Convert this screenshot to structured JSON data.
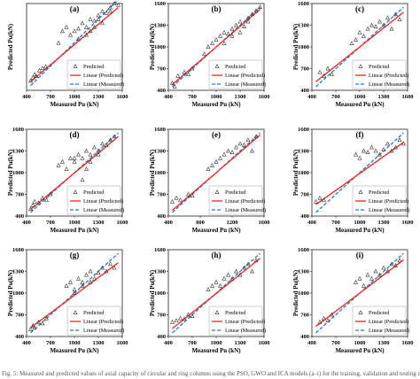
{
  "caption": "Fig. 5: Measured and predicted values of axial capacity of circular and ring columns using the PSO, GWO and ICA models (a–i) for the training, validation and testing datasets",
  "colors": {
    "predicted_marker": "#333333",
    "linear_predicted": "#ee2222",
    "linear_measured": "#2b7bbd"
  },
  "chart_data": [
    {
      "type": "scatter",
      "panel_label": "(a)",
      "xlabel": "Measured Pu (kN)",
      "ylabel": "Predicted Pu(kN)",
      "xlim": [
        400,
        1600
      ],
      "ylim": [
        400,
        1500
      ],
      "xticks": [
        400,
        700,
        1000,
        1300,
        1600
      ],
      "yticks": [],
      "legend": [
        "Predicted",
        "Linear (Predicted)",
        "Linear (Measured)"
      ],
      "legend_position": "bottom-right",
      "series": [
        {
          "name": "Predicted",
          "x": [
            450,
            480,
            500,
            520,
            560,
            600,
            640,
            800,
            850,
            900,
            950,
            1000,
            1050,
            1100,
            1150,
            1200,
            1250,
            1300,
            1350,
            1400,
            1450,
            1500,
            1550,
            1050,
            1150,
            1250,
            1350,
            1450,
            1200,
            1300
          ],
          "y": [
            520,
            560,
            600,
            580,
            650,
            680,
            700,
            1000,
            1150,
            1200,
            1100,
            1150,
            1180,
            1250,
            1200,
            1300,
            1280,
            1350,
            1400,
            1380,
            1450,
            1500,
            1480,
            1050,
            1100,
            1200,
            1250,
            1400,
            1150,
            1300
          ]
        }
      ],
      "fit_predicted": [
        [
          450,
          510
        ],
        [
          1550,
          1450
        ]
      ],
      "fit_measured": [
        [
          450,
          460
        ],
        [
          1550,
          1550
        ]
      ]
    },
    {
      "type": "scatter",
      "panel_label": "(b)",
      "xlabel": "Measured Pu (kN)",
      "ylabel": "Predicted Pu(kN)",
      "xlim": [
        400,
        1600
      ],
      "ylim": [
        400,
        1600
      ],
      "xticks": [
        400,
        700,
        1000,
        1300,
        1600
      ],
      "yticks": [
        400,
        700,
        1000,
        1300,
        1600
      ],
      "legend": [
        "Predicted",
        "Linear (Predicted)",
        "Linear (Measured)"
      ],
      "legend_position": "bottom-right",
      "series": [
        {
          "name": "Predicted",
          "x": [
            450,
            480,
            520,
            600,
            650,
            700,
            850,
            900,
            950,
            1000,
            1050,
            1100,
            1150,
            1200,
            1250,
            1300,
            1350,
            1400,
            1450,
            1500,
            1550,
            1100,
            1200,
            1300,
            1400
          ],
          "y": [
            500,
            450,
            600,
            650,
            620,
            700,
            900,
            1000,
            1050,
            1100,
            1150,
            1200,
            1180,
            1250,
            1300,
            1350,
            1280,
            1400,
            1450,
            1500,
            1550,
            1050,
            1150,
            1200,
            1350
          ]
        }
      ],
      "fit_predicted": [
        [
          450,
          480
        ],
        [
          1550,
          1520
        ]
      ],
      "fit_measured": [
        [
          450,
          450
        ],
        [
          1550,
          1550
        ]
      ]
    },
    {
      "type": "scatter",
      "panel_label": "(c)",
      "xlabel": "Measured Pu (kN)",
      "ylabel": "Predicted Pu(kN)",
      "xlim": [
        400,
        1600
      ],
      "ylim": [
        400,
        1600
      ],
      "xticks": [
        400,
        700,
        1000,
        1300,
        1600
      ],
      "yticks": [
        400,
        700,
        1000,
        1300,
        1600
      ],
      "legend": [
        "Predicted",
        "Linear (Predicted)",
        "Linear (Measured)"
      ],
      "legend_position": "bottom-right",
      "series": [
        {
          "name": "Predicted",
          "x": [
            500,
            550,
            600,
            650,
            900,
            950,
            1000,
            1050,
            1100,
            1150,
            1200,
            1250,
            1300,
            1350,
            1400,
            1450,
            1500
          ],
          "y": [
            650,
            600,
            700,
            620,
            1050,
            1100,
            1200,
            1150,
            1250,
            1300,
            1280,
            1350,
            1300,
            1400,
            1250,
            1450,
            1380
          ]
        }
      ],
      "fit_predicted": [
        [
          450,
          520
        ],
        [
          1550,
          1480
        ]
      ],
      "fit_measured": [
        [
          450,
          450
        ],
        [
          1550,
          1550
        ]
      ]
    },
    {
      "type": "scatter",
      "panel_label": "(d)",
      "xlabel": "Measured Pu (kN)",
      "ylabel": "Predicted Pu(kN)",
      "xlim": [
        400,
        1600
      ],
      "ylim": [
        400,
        1600
      ],
      "xticks": [
        400,
        700,
        1000,
        1300,
        1600
      ],
      "yticks": [
        400,
        700,
        1000,
        1300,
        1600
      ],
      "legend": [
        "Predicted",
        "Linear (Predicted)",
        "Linear (Measured)"
      ],
      "legend_position": "bottom-right",
      "series": [
        {
          "name": "Predicted",
          "x": [
            450,
            480,
            500,
            550,
            600,
            650,
            700,
            800,
            850,
            900,
            950,
            1000,
            1050,
            1100,
            1150,
            1200,
            1250,
            1300,
            1350,
            1400,
            1450,
            1500,
            1100,
            1200,
            1300,
            1000,
            1150
          ],
          "y": [
            500,
            550,
            600,
            580,
            650,
            620,
            700,
            1100,
            1150,
            1050,
            1200,
            1150,
            1250,
            1200,
            1300,
            1250,
            1350,
            1300,
            1400,
            1380,
            1450,
            1500,
            900,
            1150,
            1250,
            1200,
            1050
          ]
        }
      ],
      "fit_predicted": [
        [
          450,
          490
        ],
        [
          1550,
          1500
        ]
      ],
      "fit_measured": [
        [
          450,
          450
        ],
        [
          1550,
          1550
        ]
      ]
    },
    {
      "type": "scatter",
      "panel_label": "(e)",
      "xlabel": "Measured Pu (kN)",
      "ylabel": "Predicted Pu(kN)",
      "xlim": [
        400,
        1600
      ],
      "ylim": [
        400,
        1600
      ],
      "xticks": [
        400,
        800,
        1200,
        1600
      ],
      "yticks": [
        400,
        700,
        1000,
        1300,
        1600
      ],
      "legend": [
        "Predicted",
        "Linear (Predicted)",
        "Linear (Measured)"
      ],
      "legend_position": "bottom-right",
      "series": [
        {
          "name": "Predicted",
          "x": [
            450,
            500,
            550,
            650,
            700,
            900,
            950,
            1000,
            1050,
            1100,
            1150,
            1200,
            1250,
            1300,
            1350,
            1400,
            1450,
            1500
          ],
          "y": [
            600,
            650,
            620,
            700,
            680,
            1050,
            1100,
            1150,
            1200,
            1250,
            1300,
            1280,
            1350,
            1400,
            1380,
            1450,
            1300,
            1500
          ]
        }
      ],
      "fit_predicted": [
        [
          450,
          480
        ],
        [
          1550,
          1520
        ]
      ],
      "fit_measured": [
        [
          450,
          450
        ],
        [
          1550,
          1550
        ]
      ]
    },
    {
      "type": "scatter",
      "panel_label": "(f)",
      "xlabel": "Measured Pu (kN)",
      "ylabel": "Predicted Pu(kN)",
      "xlim": [
        400,
        1600
      ],
      "ylim": [
        400,
        1600
      ],
      "xticks": [
        400,
        700,
        1000,
        1300,
        1600
      ],
      "yticks": [
        400,
        700,
        1000,
        1300,
        1600
      ],
      "legend": [
        "Predicted",
        "Linear (Predicted)",
        "Linear (Measured)"
      ],
      "legend_position": "bottom-right",
      "series": [
        {
          "name": "Predicted",
          "x": [
            450,
            500,
            550,
            950,
            1000,
            1050,
            1100,
            1150,
            1200,
            1250,
            1300,
            1350,
            1400,
            1450,
            1500,
            1550
          ],
          "y": [
            600,
            650,
            620,
            1250,
            1200,
            1300,
            1280,
            1350,
            1300,
            1250,
            1320,
            1400,
            1300,
            1350,
            1450,
            1400
          ]
        }
      ],
      "fit_predicted": [
        [
          450,
          560
        ],
        [
          1550,
          1420
        ]
      ],
      "fit_measured": [
        [
          450,
          450
        ],
        [
          1550,
          1550
        ]
      ]
    },
    {
      "type": "scatter",
      "panel_label": "(g)",
      "xlabel": "Measured Pu (kN)",
      "ylabel": "Predicted Pu(kN)",
      "xlim": [
        400,
        1600
      ],
      "ylim": [
        400,
        1600
      ],
      "xticks": [
        400,
        700,
        1000,
        1300,
        1600
      ],
      "yticks": [
        400,
        700,
        1000,
        1300,
        1600
      ],
      "legend": [
        "Predicted",
        "Linear (Predicted)",
        "Linear (Measured)"
      ],
      "legend_position": "bottom-right",
      "series": [
        {
          "name": "Predicted",
          "x": [
            450,
            480,
            500,
            550,
            600,
            650,
            900,
            950,
            1000,
            1050,
            1100,
            1150,
            1200,
            1250,
            1300,
            1350,
            1400,
            1450,
            1500,
            1000,
            1100,
            1200
          ],
          "y": [
            500,
            550,
            520,
            600,
            580,
            650,
            1100,
            1150,
            1050,
            1200,
            1150,
            1250,
            1300,
            1200,
            1280,
            1350,
            1300,
            1400,
            1350,
            1000,
            1100,
            1150
          ]
        }
      ],
      "fit_predicted": [
        [
          450,
          520
        ],
        [
          1550,
          1420
        ]
      ],
      "fit_measured": [
        [
          450,
          450
        ],
        [
          1550,
          1550
        ]
      ]
    },
    {
      "type": "scatter",
      "panel_label": "(h)",
      "xlabel": "Measured Pu (kN)",
      "ylabel": "Predicted Pu(kN)",
      "xlim": [
        400,
        1600
      ],
      "ylim": [
        400,
        1600
      ],
      "xticks": [
        400,
        700,
        1000,
        1300,
        1600
      ],
      "yticks": [
        400,
        700,
        1000,
        1300,
        1600
      ],
      "legend": [
        "Predicted",
        "Linear (Predicted)",
        "Linear (Measured)"
      ],
      "legend_position": "bottom-right",
      "series": [
        {
          "name": "Predicted",
          "x": [
            450,
            500,
            550,
            600,
            650,
            700,
            900,
            950,
            1000,
            1050,
            1100,
            1150,
            1200,
            1250,
            1300,
            1350,
            1400,
            1450,
            1500
          ],
          "y": [
            600,
            620,
            650,
            640,
            700,
            680,
            1050,
            1100,
            1150,
            1100,
            1200,
            1250,
            1200,
            1300,
            1250,
            1350,
            1400,
            1300,
            1450
          ]
        }
      ],
      "fit_predicted": [
        [
          450,
          510
        ],
        [
          1550,
          1480
        ]
      ],
      "fit_measured": [
        [
          450,
          450
        ],
        [
          1550,
          1550
        ]
      ]
    },
    {
      "type": "scatter",
      "panel_label": "(i)",
      "xlabel": "Measured Pu (kN)",
      "ylabel": "Predicted Pu(kN)",
      "xlim": [
        400,
        1600
      ],
      "ylim": [
        400,
        1600
      ],
      "xticks": [
        400,
        700,
        1000,
        1300,
        1600
      ],
      "yticks": [
        400,
        700,
        1000,
        1300,
        1600
      ],
      "legend": [
        "Predicted",
        "Linear (Predicted)",
        "Linear (Measured)"
      ],
      "legend_position": "bottom-right",
      "series": [
        {
          "name": "Predicted",
          "x": [
            500,
            550,
            600,
            650,
            950,
            1000,
            1050,
            1100,
            1150,
            1200,
            1250,
            1300,
            1350,
            1400,
            1450,
            1500
          ],
          "y": [
            600,
            650,
            620,
            700,
            1150,
            1200,
            1100,
            1250,
            1200,
            1300,
            1250,
            1350,
            1300,
            1400,
            1380,
            1450
          ]
        }
      ],
      "fit_predicted": [
        [
          450,
          540
        ],
        [
          1550,
          1460
        ]
      ],
      "fit_measured": [
        [
          450,
          450
        ],
        [
          1550,
          1550
        ]
      ]
    }
  ]
}
